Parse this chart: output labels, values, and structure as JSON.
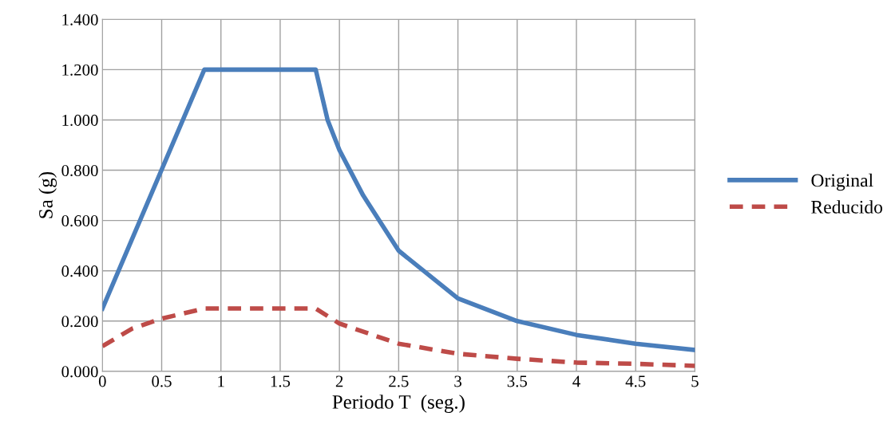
{
  "chart_data": {
    "type": "line",
    "xlabel": "Periodo T  (seg.)",
    "ylabel": "Sa (g)",
    "xlim": [
      0,
      5
    ],
    "xticks": [
      0,
      {
        "value": 0.5,
        "label": "0.5"
      },
      1,
      {
        "value": 1.5,
        "label": "1.5"
      },
      2,
      {
        "value": 2.5,
        "label": "2.5"
      },
      3,
      {
        "value": 3.5,
        "label": "3.5"
      },
      4,
      {
        "value": 4.5,
        "label": "4.5"
      },
      5
    ],
    "ylim": [
      0,
      1.4
    ],
    "yticks": [
      {
        "value": 0,
        "label": "0.000"
      },
      {
        "value": 0.2,
        "label": "0.200"
      },
      {
        "value": 0.4,
        "label": "0.400"
      },
      {
        "value": 0.6,
        "label": "0.600"
      },
      {
        "value": 0.8,
        "label": "0.800"
      },
      {
        "value": 1.0,
        "label": "1.000"
      },
      {
        "value": 1.2,
        "label": "1.200"
      },
      {
        "value": 1.4,
        "label": "1.400"
      }
    ],
    "grid": true,
    "legend": "right",
    "marker": "none",
    "series": [
      {
        "name": "Original",
        "color": "#4a7ebb",
        "line_style": "solid",
        "x": [
          0,
          0.86,
          1.8,
          1.85,
          1.9,
          2.0,
          2.2,
          2.5,
          3.0,
          3.5,
          4.0,
          4.5,
          5.0
        ],
        "values": [
          0.25,
          1.2,
          1.2,
          1.1,
          1.0,
          0.88,
          0.7,
          0.48,
          0.29,
          0.2,
          0.145,
          0.11,
          0.085
        ]
      },
      {
        "name": "Reducido",
        "color": "#be4b48",
        "line_style": "dashed",
        "x": [
          0,
          0.25,
          0.5,
          0.86,
          1.8,
          2.0,
          2.5,
          3.0,
          3.5,
          4.0,
          4.5,
          5.0
        ],
        "values": [
          0.1,
          0.17,
          0.21,
          0.25,
          0.25,
          0.19,
          0.11,
          0.07,
          0.05,
          0.035,
          0.03,
          0.022
        ]
      }
    ]
  }
}
